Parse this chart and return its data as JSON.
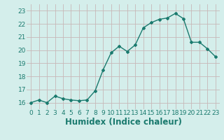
{
  "x": [
    0,
    1,
    2,
    3,
    4,
    5,
    6,
    7,
    8,
    9,
    10,
    11,
    12,
    13,
    14,
    15,
    16,
    17,
    18,
    19,
    20,
    21,
    22,
    23
  ],
  "y": [
    16.0,
    16.2,
    16.0,
    16.5,
    16.3,
    16.2,
    16.15,
    16.2,
    16.9,
    18.5,
    19.8,
    20.3,
    19.9,
    20.4,
    21.7,
    22.1,
    22.35,
    22.45,
    22.8,
    22.4,
    20.6,
    20.6,
    20.1,
    19.5
  ],
  "line_color": "#1a7a6e",
  "marker": "D",
  "marker_size": 2.0,
  "xlabel": "Humidex (Indice chaleur)",
  "xlim": [
    -0.5,
    23.5
  ],
  "ylim": [
    15.5,
    23.5
  ],
  "yticks": [
    16,
    17,
    18,
    19,
    20,
    21,
    22,
    23
  ],
  "xticks": [
    0,
    1,
    2,
    3,
    4,
    5,
    6,
    7,
    8,
    9,
    10,
    11,
    12,
    13,
    14,
    15,
    16,
    17,
    18,
    19,
    20,
    21,
    22,
    23
  ],
  "bg_color": "#d4eeeb",
  "grid_color_major": "#c8b8b8",
  "grid_color_minor": "#e0d0d0",
  "tick_color": "#1a7a6e",
  "tick_fontsize": 6.5,
  "xlabel_fontsize": 8.5
}
